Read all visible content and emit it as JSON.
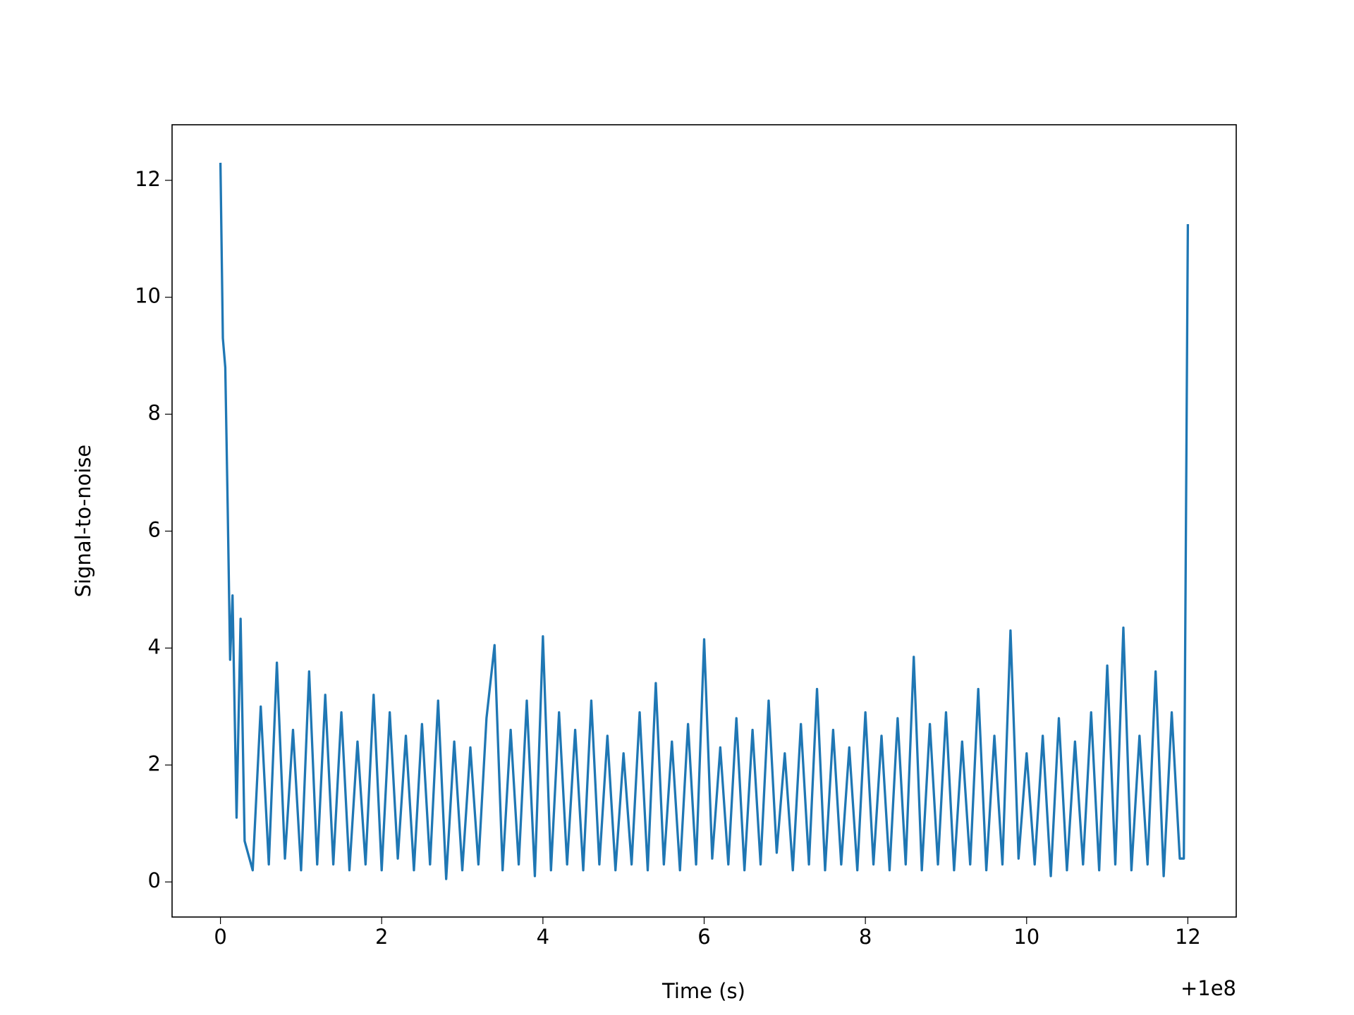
{
  "chart_data": {
    "type": "line",
    "xlabel": "Time (s)",
    "ylabel": "Signal-to-noise",
    "x_offset_label": "+1e8",
    "x": [
      0,
      0.03,
      0.06,
      0.09,
      0.12,
      0.15,
      0.2,
      0.25,
      0.3,
      0.4,
      0.5,
      0.6,
      0.7,
      0.8,
      0.9,
      1.0,
      1.1,
      1.2,
      1.3,
      1.4,
      1.5,
      1.6,
      1.7,
      1.8,
      1.9,
      2.0,
      2.1,
      2.2,
      2.3,
      2.4,
      2.5,
      2.6,
      2.7,
      2.8,
      2.9,
      3.0,
      3.1,
      3.2,
      3.3,
      3.4,
      3.5,
      3.6,
      3.7,
      3.8,
      3.9,
      4.0,
      4.1,
      4.2,
      4.3,
      4.4,
      4.5,
      4.6,
      4.7,
      4.8,
      4.9,
      5.0,
      5.1,
      5.2,
      5.3,
      5.4,
      5.5,
      5.6,
      5.7,
      5.8,
      5.9,
      6.0,
      6.1,
      6.2,
      6.3,
      6.4,
      6.5,
      6.6,
      6.7,
      6.8,
      6.9,
      7.0,
      7.1,
      7.2,
      7.3,
      7.4,
      7.5,
      7.6,
      7.7,
      7.8,
      7.9,
      8.0,
      8.1,
      8.2,
      8.3,
      8.4,
      8.5,
      8.6,
      8.7,
      8.8,
      8.9,
      9.0,
      9.1,
      9.2,
      9.3,
      9.4,
      9.5,
      9.6,
      9.7,
      9.8,
      9.9,
      10.0,
      10.1,
      10.2,
      10.3,
      10.4,
      10.5,
      10.6,
      10.7,
      10.8,
      10.9,
      11.0,
      11.1,
      11.2,
      11.3,
      11.4,
      11.5,
      11.6,
      11.7,
      11.8,
      11.9,
      11.95,
      12.0
    ],
    "series": [
      {
        "color": "#1f77b4",
        "values": [
          12.3,
          9.3,
          8.8,
          6.4,
          3.8,
          4.9,
          1.1,
          4.5,
          0.7,
          0.2,
          3.0,
          0.3,
          3.75,
          0.4,
          2.6,
          0.2,
          3.6,
          0.3,
          3.2,
          0.3,
          2.9,
          0.2,
          2.4,
          0.3,
          3.2,
          0.2,
          2.9,
          0.4,
          2.5,
          0.2,
          2.7,
          0.3,
          3.1,
          0.05,
          2.4,
          0.2,
          2.3,
          0.3,
          2.8,
          4.05,
          0.2,
          2.6,
          0.3,
          3.1,
          0.1,
          4.2,
          0.2,
          2.9,
          0.3,
          2.6,
          0.2,
          3.1,
          0.3,
          2.5,
          0.2,
          2.2,
          0.3,
          2.9,
          0.2,
          3.4,
          0.3,
          2.4,
          0.2,
          2.7,
          0.3,
          4.15,
          0.4,
          2.3,
          0.3,
          2.8,
          0.2,
          2.6,
          0.3,
          3.1,
          0.5,
          2.2,
          0.2,
          2.7,
          0.3,
          3.3,
          0.2,
          2.6,
          0.3,
          2.3,
          0.2,
          2.9,
          0.3,
          2.5,
          0.2,
          2.8,
          0.3,
          3.85,
          0.2,
          2.7,
          0.3,
          2.9,
          0.2,
          2.4,
          0.3,
          3.3,
          0.2,
          2.5,
          0.3,
          4.3,
          0.4,
          2.2,
          0.3,
          2.5,
          0.1,
          2.8,
          0.2,
          2.4,
          0.3,
          2.9,
          0.2,
          3.7,
          0.3,
          4.35,
          0.2,
          2.5,
          0.3,
          3.6,
          0.1,
          2.9,
          0.4,
          0.4,
          11.25
        ]
      }
    ],
    "xlim": [
      -0.6,
      12.6
    ],
    "ylim": [
      -0.6,
      12.95
    ],
    "xticks": [
      0,
      2,
      4,
      6,
      8,
      10,
      12
    ],
    "yticks": [
      0,
      2,
      4,
      6,
      8,
      10,
      12
    ]
  }
}
